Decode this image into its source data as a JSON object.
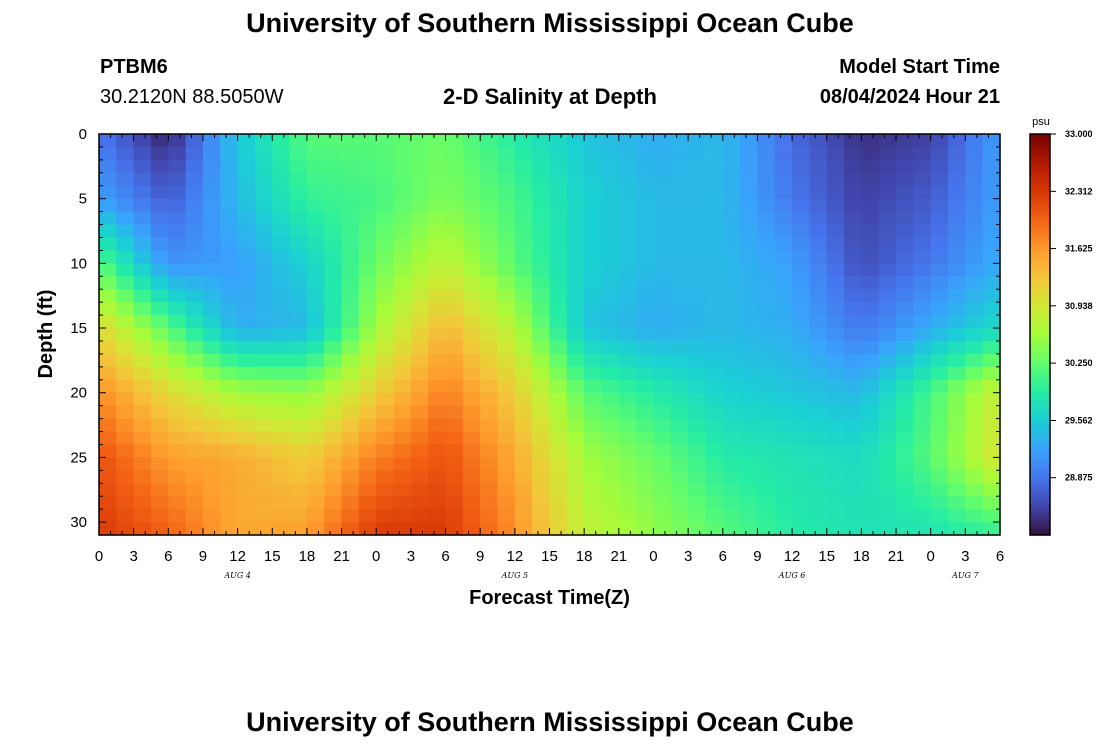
{
  "header": {
    "title": "University of Southern Mississippi Ocean Cube",
    "station_id": "PTBM6",
    "coords": "30.2120N  88.5050W",
    "plot_title": "2-D Salinity at Depth",
    "model_start_label": "Model Start Time",
    "model_start_value": "08/04/2024 Hour 21"
  },
  "footer": {
    "title": "University of Southern Mississippi Ocean Cube"
  },
  "colors": {
    "ramp": [
      "#30123b",
      "#4145ab",
      "#4675ed",
      "#39a2fc",
      "#1bcfd4",
      "#24eca6",
      "#61fc6c",
      "#a4fc3b",
      "#d1e834",
      "#f3c63a",
      "#fe9b2d",
      "#f36315",
      "#d93806",
      "#b11901",
      "#7a0402"
    ]
  },
  "chart_data": {
    "type": "heatmap",
    "title": "2-D Salinity at Depth",
    "xlabel": "Forecast Time(Z)",
    "ylabel": "Depth (ft)",
    "x_hour_range": [
      0,
      78
    ],
    "x_tick_labels": [
      "0",
      "3",
      "6",
      "9",
      "12",
      "15",
      "18",
      "21",
      "0",
      "3",
      "6",
      "9",
      "12",
      "15",
      "18",
      "21",
      "0",
      "3",
      "6",
      "9",
      "12",
      "15",
      "18",
      "21",
      "0",
      "3",
      "6"
    ],
    "date_labels": [
      {
        "label": "AUG 4",
        "hour": 12
      },
      {
        "label": "AUG 5",
        "hour": 36
      },
      {
        "label": "AUG 6",
        "hour": 60
      },
      {
        "label": "AUG 7",
        "hour": 75
      }
    ],
    "y_range": [
      0,
      31
    ],
    "y_ticks": [
      0,
      5,
      10,
      15,
      20,
      25,
      30
    ],
    "colorbar": {
      "unit": "psu",
      "min": 28.1875,
      "max": 33.0,
      "tick_values": [
        33.0,
        32.312,
        31.625,
        30.938,
        30.25,
        29.562,
        28.875
      ],
      "tick_labels": [
        "33.000",
        "32.312",
        "31.625",
        "30.938",
        "30.250",
        "29.562",
        "28.875"
      ]
    },
    "grid_x_hours": [
      0,
      6,
      12,
      18,
      24,
      30,
      36,
      42,
      48,
      54,
      60,
      66,
      72,
      78
    ],
    "grid_depths_ft": [
      0,
      5,
      10,
      15,
      20,
      25,
      31
    ],
    "salinity_psu": [
      [
        28.9,
        28.3,
        29.5,
        30.2,
        30.2,
        30.3,
        29.9,
        29.5,
        29.3,
        29.4,
        28.8,
        28.4,
        28.5,
        29.2
      ],
      [
        29.2,
        28.7,
        29.4,
        30.0,
        30.1,
        30.4,
        30.1,
        29.6,
        29.4,
        29.4,
        28.9,
        28.5,
        28.7,
        29.2
      ],
      [
        30.2,
        29.1,
        29.2,
        29.6,
        30.3,
        30.8,
        30.2,
        29.6,
        29.4,
        29.4,
        29.2,
        28.6,
        28.9,
        29.3
      ],
      [
        31.1,
        30.2,
        29.3,
        29.4,
        30.6,
        31.4,
        30.7,
        29.5,
        29.3,
        29.4,
        29.3,
        28.9,
        29.3,
        29.7
      ],
      [
        31.7,
        31.1,
        30.6,
        30.5,
        31.2,
        31.8,
        31.2,
        30.2,
        29.9,
        29.6,
        29.5,
        29.4,
        30.1,
        30.9
      ],
      [
        32.1,
        31.6,
        31.5,
        31.2,
        31.8,
        32.1,
        31.5,
        30.6,
        30.3,
        29.9,
        29.8,
        29.7,
        30.2,
        31.0
      ],
      [
        32.3,
        32.0,
        31.5,
        31.6,
        32.3,
        32.3,
        31.7,
        30.8,
        30.5,
        30.2,
        29.9,
        29.8,
        29.8,
        30.0
      ]
    ]
  }
}
